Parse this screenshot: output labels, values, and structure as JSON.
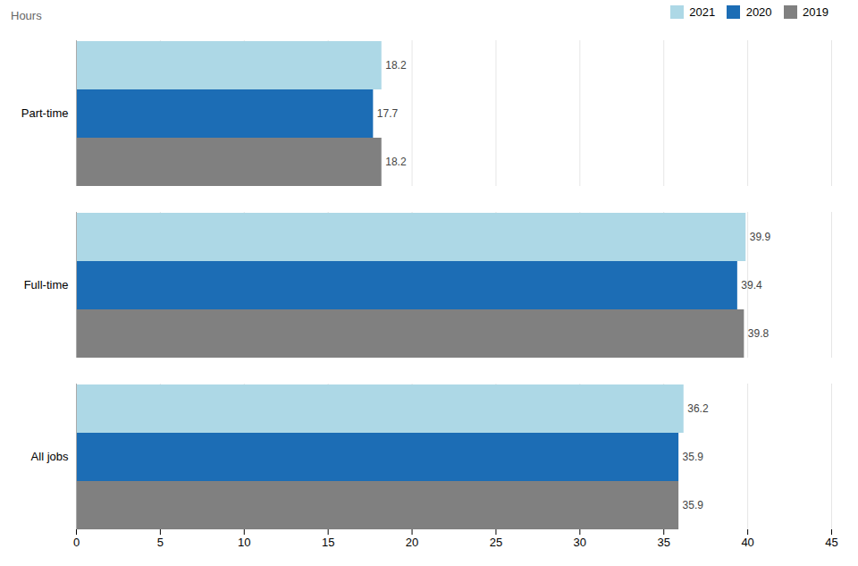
{
  "chart_data": {
    "type": "bar",
    "orientation": "horizontal",
    "xlabel": "Hours",
    "categories": [
      "All jobs",
      "Full-time",
      "Part-time"
    ],
    "series": [
      {
        "name": "2021",
        "color": "#add8e6",
        "values": [
          36.2,
          39.9,
          18.2
        ]
      },
      {
        "name": "2020",
        "color": "#1c6db5",
        "values": [
          35.9,
          39.4,
          17.7
        ]
      },
      {
        "name": "2019",
        "color": "#808080",
        "values": [
          35.9,
          39.8,
          18.2
        ]
      }
    ],
    "xlim": [
      0,
      45
    ],
    "xticks": [
      0,
      5,
      10,
      15,
      20,
      25,
      30,
      35,
      40,
      45
    ],
    "grid": true,
    "legend": "upper right",
    "data_labels": true
  }
}
